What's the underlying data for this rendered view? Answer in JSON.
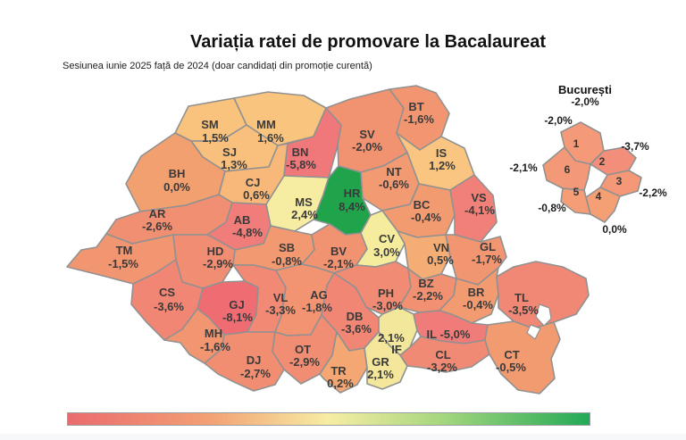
{
  "title": "Variația ratei de promovare la Bacalaureat",
  "subtitle": "Sesiunea iunie 2025 față de 2024 (doar candidați din promoție curentă)",
  "legend": {
    "gradient": [
      "#ea6b6e",
      "#f3a074",
      "#f7eda4",
      "#a4d67e",
      "#23a955"
    ]
  },
  "chart_data": {
    "type": "choropleth",
    "unit": "%",
    "title": "Variația ratei de promovare la Bacalaureat",
    "subtitle": "Sesiunea iunie 2025 față de 2024 (doar candidați din promoție curentă)",
    "value_range": [
      -8.1,
      8.4
    ],
    "regions": [
      {
        "code": "SM",
        "value": 1.5,
        "display": "1,5%",
        "fill": "#f9c37e"
      },
      {
        "code": "MM",
        "value": 1.6,
        "display": "1,6%",
        "fill": "#f9c47e"
      },
      {
        "code": "SJ",
        "value": 1.3,
        "display": "1,3%",
        "fill": "#f8c07c"
      },
      {
        "code": "BH",
        "value": 0.0,
        "display": "0,0%",
        "fill": "#f3a071"
      },
      {
        "code": "CJ",
        "value": 0.6,
        "display": "0,6%",
        "fill": "#f7b87a"
      },
      {
        "code": "BN",
        "value": -5.8,
        "display": "-5,8%",
        "fill": "#f0777a"
      },
      {
        "code": "SV",
        "value": -2.0,
        "display": "-2,0%",
        "fill": "#f19271"
      },
      {
        "code": "BT",
        "value": -1.6,
        "display": "-1,6%",
        "fill": "#f29671"
      },
      {
        "code": "IS",
        "value": 1.2,
        "display": "1,2%",
        "fill": "#f9c580"
      },
      {
        "code": "NT",
        "value": -0.6,
        "display": "-0,6%",
        "fill": "#f29a71"
      },
      {
        "code": "MS",
        "value": 2.4,
        "display": "2,4%",
        "fill": "#f6eda3"
      },
      {
        "code": "HR",
        "value": 8.4,
        "display": "8,4%",
        "fill": "#1fa44c"
      },
      {
        "code": "BC",
        "value": -0.4,
        "display": "-0,4%",
        "fill": "#f29b71"
      },
      {
        "code": "VS",
        "value": -4.1,
        "display": "-4,1%",
        "fill": "#f18178"
      },
      {
        "code": "AR",
        "value": -2.6,
        "display": "-2,6%",
        "fill": "#f18f72"
      },
      {
        "code": "AB",
        "value": -4.8,
        "display": "-4,8%",
        "fill": "#f07d79"
      },
      {
        "code": "TM",
        "value": -1.5,
        "display": "-1,5%",
        "fill": "#f29671"
      },
      {
        "code": "HD",
        "value": -2.9,
        "display": "-2,9%",
        "fill": "#f18d72"
      },
      {
        "code": "SB",
        "value": -0.8,
        "display": "-0,8%",
        "fill": "#f29971"
      },
      {
        "code": "BV",
        "value": -2.1,
        "display": "-2,1%",
        "fill": "#f19271"
      },
      {
        "code": "CV",
        "value": 3.0,
        "display": "3,0%",
        "fill": "#f5ec9e"
      },
      {
        "code": "VN",
        "value": 0.5,
        "display": "0,5%",
        "fill": "#f5ad76"
      },
      {
        "code": "GL",
        "value": -1.7,
        "display": "-1,7%",
        "fill": "#f29571"
      },
      {
        "code": "CS",
        "value": -3.6,
        "display": "-3,6%",
        "fill": "#f18675"
      },
      {
        "code": "GJ",
        "value": -8.1,
        "display": "-8,1%",
        "fill": "#ee6c72"
      },
      {
        "code": "VL",
        "value": -3.3,
        "display": "-3,3%",
        "fill": "#f18974"
      },
      {
        "code": "AG",
        "value": -1.8,
        "display": "-1,8%",
        "fill": "#f29471"
      },
      {
        "code": "PH",
        "value": -3.0,
        "display": "-3,0%",
        "fill": "#f18b73"
      },
      {
        "code": "BZ",
        "value": -2.2,
        "display": "-2,2%",
        "fill": "#f19171"
      },
      {
        "code": "BR",
        "value": -0.4,
        "display": "-0,4%",
        "fill": "#f29b71"
      },
      {
        "code": "TL",
        "value": -3.5,
        "display": "-3,5%",
        "fill": "#f18775"
      },
      {
        "code": "MH",
        "value": -1.6,
        "display": "-1,6%",
        "fill": "#f29671"
      },
      {
        "code": "DB",
        "value": -3.6,
        "display": "-3,6%",
        "fill": "#f18675"
      },
      {
        "code": "IF",
        "value": 2.1,
        "display": "2,1%",
        "fill": "#f3e79b"
      },
      {
        "code": "IL",
        "value": -5.0,
        "display": "-5,0%",
        "fill": "#f07c79",
        "inline": true
      },
      {
        "code": "DJ",
        "value": -2.7,
        "display": "-2,7%",
        "fill": "#f18e72"
      },
      {
        "code": "OT",
        "value": -2.9,
        "display": "-2,9%",
        "fill": "#f18d72"
      },
      {
        "code": "TR",
        "value": 0.2,
        "display": "0,2%",
        "fill": "#f4a673"
      },
      {
        "code": "GR",
        "value": 2.1,
        "display": "2,1%",
        "fill": "#f4e79b"
      },
      {
        "code": "CL",
        "value": -3.2,
        "display": "-3,2%",
        "fill": "#f18a74"
      },
      {
        "code": "CT",
        "value": -0.5,
        "display": "-0,5%",
        "fill": "#f29b71"
      }
    ],
    "bucharest": {
      "title": "București",
      "value": -2.0,
      "display": "-2,0%",
      "sectors": [
        {
          "num": "1",
          "value": -2.0,
          "display": "-2,0%",
          "fill": "#f59a78"
        },
        {
          "num": "2",
          "value": -3.7,
          "display": "-3,7%",
          "fill": "#f28e79"
        },
        {
          "num": "3",
          "value": -2.2,
          "display": "-2,2%",
          "fill": "#f49877"
        },
        {
          "num": "4",
          "value": 0.0,
          "display": "0,0%",
          "fill": "#f5a074"
        },
        {
          "num": "5",
          "value": -0.8,
          "display": "-0,8%",
          "fill": "#f59d76"
        },
        {
          "num": "6",
          "value": -2.1,
          "display": "-2,1%",
          "fill": "#f49977"
        }
      ]
    }
  }
}
